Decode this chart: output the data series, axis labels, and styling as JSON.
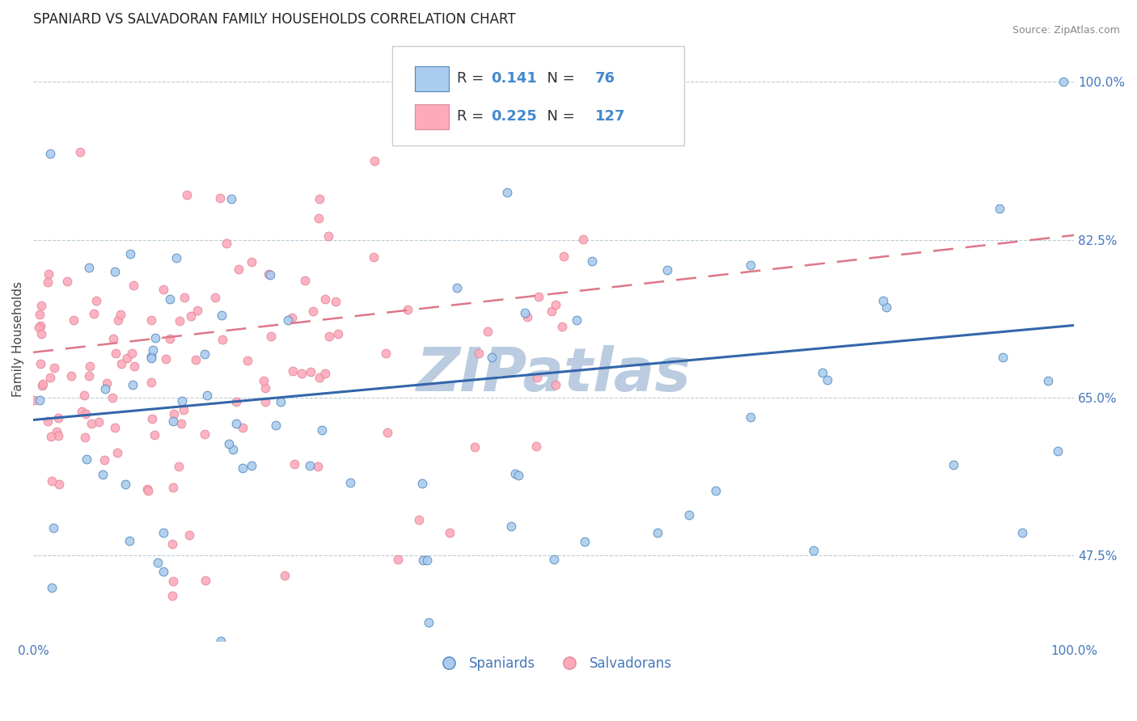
{
  "title": "SPANIARD VS SALVADORAN FAMILY HOUSEHOLDS CORRELATION CHART",
  "source_text": "Source: ZipAtlas.com",
  "ylabel": "Family Households",
  "xlim": [
    0,
    100
  ],
  "ylim": [
    38,
    105
  ],
  "yticks": [
    47.5,
    65.0,
    82.5,
    100.0
  ],
  "xticks": [
    0,
    100
  ],
  "xtick_labels": [
    "0.0%",
    "100.0%"
  ],
  "ytick_labels": [
    "47.5%",
    "65.0%",
    "82.5%",
    "100.0%"
  ],
  "legend_blue_r": "0.141",
  "legend_blue_n": "76",
  "legend_pink_r": "0.225",
  "legend_pink_n": "127",
  "legend_label_blue": "Spaniards",
  "legend_label_pink": "Salvadorans",
  "blue_dot_color": "#AACCEE",
  "blue_edge_color": "#5588BB",
  "pink_dot_color": "#FFAABB",
  "pink_edge_color": "#DD8899",
  "blue_line_color": "#3366AA",
  "pink_line_color": "#DD7788",
  "watermark": "ZIPatlas",
  "watermark_color": "#BBCCE0",
  "title_fontsize": 12,
  "axis_label_fontsize": 11,
  "tick_fontsize": 11,
  "source_fontsize": 9,
  "blue_line_y0": 62.5,
  "blue_line_y1": 73.0,
  "pink_line_y0": 70.0,
  "pink_line_y1": 83.0
}
